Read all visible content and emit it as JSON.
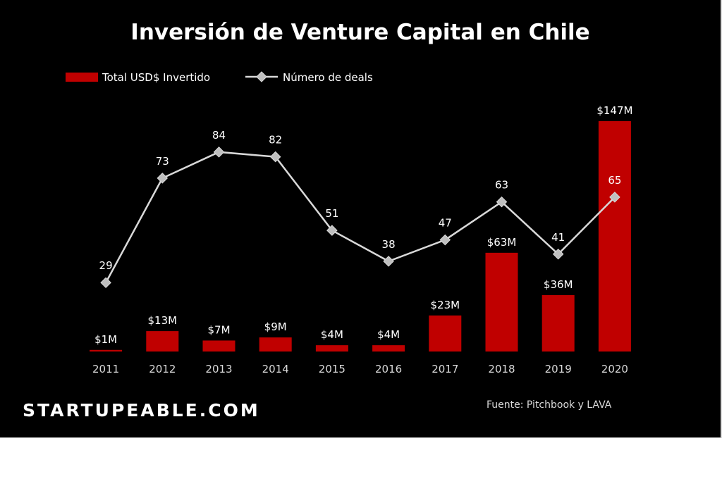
{
  "chart_data": {
    "type": "bar",
    "title": "Inversión de Venture Capital en Chile",
    "categories": [
      "2011",
      "2012",
      "2013",
      "2014",
      "2015",
      "2016",
      "2017",
      "2018",
      "2019",
      "2020"
    ],
    "series": [
      {
        "name": "Total USD$ Invertido",
        "type": "bar",
        "axis": "primary",
        "color": "#c00000",
        "values": [
          1,
          13,
          7,
          9,
          4,
          4,
          23,
          63,
          36,
          147
        ],
        "labels": [
          "$1M",
          "$13M",
          "$7M",
          "$9M",
          "$4M",
          "$4M",
          "$23M",
          "$63M",
          "$36M",
          "$147M"
        ]
      },
      {
        "name": "Número de deals",
        "type": "line",
        "axis": "secondary",
        "color": "#d9d9d9",
        "marker": "diamond",
        "values": [
          29,
          73,
          84,
          82,
          51,
          38,
          47,
          63,
          41,
          65
        ],
        "labels": [
          "29",
          "73",
          "84",
          "82",
          "51",
          "38",
          "47",
          "63",
          "41",
          "65"
        ]
      }
    ],
    "ylim_bars": [
      0,
      147
    ],
    "ylim_line": [
      0,
      97
    ],
    "legend_position": "top-left",
    "grid": false,
    "background": "#000000"
  },
  "footer": {
    "brand": "STARTUPEABLE.COM",
    "source": "Fuente: Pitchbook y LAVA"
  }
}
